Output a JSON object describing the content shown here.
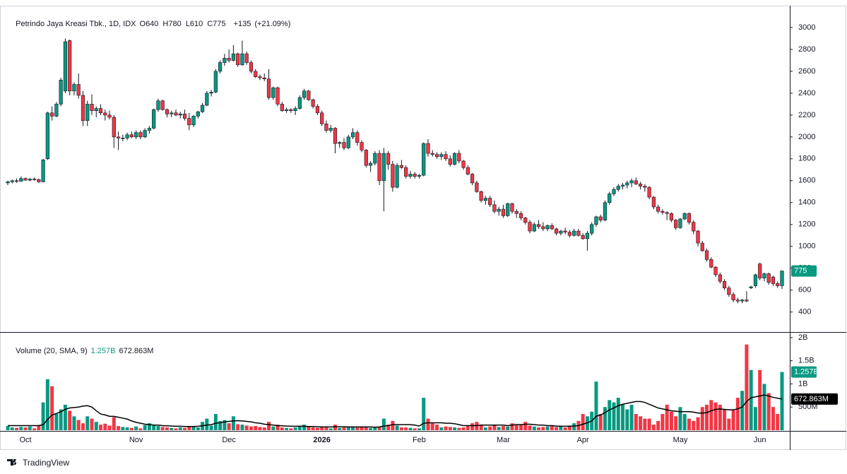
{
  "chart_data": {
    "type": "candlestick",
    "title": "Petrindo Jaya Kreasi Tbk., 1D, IDX",
    "quote_fields": [
      {
        "name": "O",
        "value": 640
      },
      {
        "name": "H",
        "value": 780
      },
      {
        "name": "L",
        "value": 610
      },
      {
        "name": "C",
        "value": 775
      }
    ],
    "change": {
      "value": 135,
      "label": "+135"
    },
    "change_pct": {
      "value": 21.09,
      "label": "(+21.09%)"
    },
    "up_color": "#089981",
    "down_color": "#f23645",
    "sma_color": "#000000",
    "categories": [
      null,
      null,
      null,
      null,
      "Oct",
      null,
      null,
      null,
      null,
      null,
      null,
      null,
      null,
      null,
      null,
      null,
      null,
      null,
      null,
      null,
      null,
      null,
      null,
      null,
      null,
      null,
      null,
      null,
      null,
      "Nov",
      null,
      null,
      null,
      null,
      null,
      null,
      null,
      null,
      null,
      null,
      null,
      null,
      null,
      null,
      null,
      null,
      null,
      null,
      null,
      null,
      "Dec",
      null,
      null,
      null,
      null,
      null,
      null,
      null,
      null,
      null,
      null,
      null,
      null,
      null,
      null,
      null,
      null,
      null,
      null,
      null,
      null,
      "2026",
      null,
      null,
      null,
      null,
      null,
      null,
      null,
      null,
      null,
      null,
      null,
      null,
      null,
      null,
      null,
      null,
      null,
      null,
      null,
      null,
      null,
      "Feb",
      null,
      null,
      null,
      null,
      null,
      null,
      null,
      null,
      null,
      null,
      null,
      null,
      null,
      null,
      null,
      null,
      null,
      null,
      "Mar",
      null,
      null,
      null,
      null,
      null,
      null,
      null,
      null,
      null,
      null,
      null,
      null,
      null,
      null,
      null,
      null,
      null,
      "Apr",
      null,
      null,
      null,
      null,
      null,
      null,
      null,
      null,
      null,
      null,
      null,
      null,
      null,
      null,
      null,
      null,
      null,
      null,
      null,
      null,
      null,
      "May",
      null,
      null,
      null,
      null,
      null,
      null,
      null,
      null,
      null,
      null,
      null,
      null,
      null,
      null,
      null,
      null,
      null,
      "Jun",
      null,
      null,
      null,
      null,
      null
    ],
    "candles": [
      [
        1580,
        1600,
        1560,
        1590
      ],
      [
        1590,
        1610,
        1575,
        1600
      ],
      [
        1600,
        1620,
        1580,
        1595
      ],
      [
        1595,
        1640,
        1590,
        1620
      ],
      [
        1620,
        1630,
        1600,
        1605
      ],
      [
        1605,
        1625,
        1595,
        1615
      ],
      [
        1615,
        1630,
        1600,
        1610
      ],
      [
        1610,
        1620,
        1580,
        1590
      ],
      [
        1590,
        1800,
        1585,
        1790
      ],
      [
        1800,
        2230,
        1790,
        2220
      ],
      [
        2220,
        2280,
        2150,
        2190
      ],
      [
        2190,
        2320,
        2180,
        2300
      ],
      [
        2300,
        2540,
        2280,
        2520
      ],
      [
        2420,
        2900,
        2400,
        2870
      ],
      [
        2880,
        2890,
        2380,
        2420
      ],
      [
        2420,
        2500,
        2380,
        2480
      ],
      [
        2480,
        2580,
        2350,
        2380
      ],
      [
        2380,
        2420,
        2100,
        2150
      ],
      [
        2150,
        2330,
        2100,
        2300
      ],
      [
        2300,
        2390,
        2200,
        2240
      ],
      [
        2240,
        2280,
        2180,
        2260
      ],
      [
        2260,
        2300,
        2200,
        2220
      ],
      [
        2220,
        2250,
        2150,
        2200
      ],
      [
        2200,
        2240,
        2160,
        2180
      ],
      [
        2180,
        2200,
        1900,
        2000
      ],
      [
        2000,
        2050,
        1880,
        1990
      ],
      [
        1990,
        2020,
        1960,
        1990
      ],
      [
        1990,
        2040,
        1970,
        2020
      ],
      [
        2020,
        2050,
        1990,
        2000
      ],
      [
        2000,
        2060,
        1980,
        2040
      ],
      [
        2040,
        2060,
        1980,
        2000
      ],
      [
        2000,
        2080,
        1990,
        2060
      ],
      [
        2060,
        2100,
        2030,
        2080
      ],
      [
        2080,
        2260,
        2070,
        2250
      ],
      [
        2250,
        2350,
        2230,
        2330
      ],
      [
        2330,
        2340,
        2240,
        2250
      ],
      [
        2250,
        2260,
        2180,
        2210
      ],
      [
        2210,
        2240,
        2180,
        2220
      ],
      [
        2220,
        2250,
        2190,
        2200
      ],
      [
        2200,
        2230,
        2170,
        2210
      ],
      [
        2210,
        2250,
        2150,
        2170
      ],
      [
        2170,
        2220,
        2060,
        2110
      ],
      [
        2110,
        2200,
        2090,
        2190
      ],
      [
        2190,
        2240,
        2170,
        2230
      ],
      [
        2230,
        2310,
        2220,
        2290
      ],
      [
        2290,
        2420,
        2280,
        2400
      ],
      [
        2400,
        2430,
        2370,
        2410
      ],
      [
        2410,
        2620,
        2400,
        2600
      ],
      [
        2600,
        2700,
        2580,
        2680
      ],
      [
        2680,
        2760,
        2650,
        2720
      ],
      [
        2720,
        2800,
        2680,
        2700
      ],
      [
        2700,
        2840,
        2690,
        2760
      ],
      [
        2760,
        2770,
        2640,
        2660
      ],
      [
        2660,
        2880,
        2650,
        2760
      ],
      [
        2760,
        2780,
        2660,
        2680
      ],
      [
        2680,
        2700,
        2580,
        2600
      ],
      [
        2600,
        2620,
        2540,
        2550
      ],
      [
        2550,
        2570,
        2520,
        2540
      ],
      [
        2540,
        2580,
        2510,
        2530
      ],
      [
        2530,
        2620,
        2340,
        2360
      ],
      [
        2360,
        2460,
        2340,
        2450
      ],
      [
        2450,
        2460,
        2280,
        2300
      ],
      [
        2300,
        2320,
        2230,
        2240
      ],
      [
        2240,
        2270,
        2220,
        2250
      ],
      [
        2250,
        2260,
        2220,
        2240
      ],
      [
        2240,
        2280,
        2200,
        2260
      ],
      [
        2260,
        2380,
        2250,
        2360
      ],
      [
        2360,
        2440,
        2340,
        2420
      ],
      [
        2420,
        2430,
        2330,
        2340
      ],
      [
        2340,
        2350,
        2260,
        2280
      ],
      [
        2280,
        2300,
        2200,
        2220
      ],
      [
        2220,
        2240,
        2100,
        2120
      ],
      [
        2120,
        2150,
        2040,
        2060
      ],
      [
        2060,
        2110,
        2040,
        2080
      ],
      [
        2080,
        2090,
        1850,
        1940
      ],
      [
        1940,
        1960,
        1900,
        1950
      ],
      [
        1950,
        1990,
        1880,
        1900
      ],
      [
        1900,
        2020,
        1890,
        2000
      ],
      [
        2000,
        2080,
        1980,
        2040
      ],
      [
        2040,
        2060,
        1920,
        1950
      ],
      [
        1950,
        1970,
        1860,
        1880
      ],
      [
        1880,
        1890,
        1720,
        1740
      ],
      [
        1740,
        1780,
        1680,
        1760
      ],
      [
        1760,
        1870,
        1740,
        1850
      ],
      [
        1850,
        1880,
        1560,
        1600
      ],
      [
        1600,
        1900,
        1320,
        1850
      ],
      [
        1850,
        1870,
        1700,
        1750
      ],
      [
        1750,
        1780,
        1500,
        1540
      ],
      [
        1540,
        1760,
        1530,
        1740
      ],
      [
        1740,
        1790,
        1710,
        1720
      ],
      [
        1720,
        1740,
        1620,
        1640
      ],
      [
        1640,
        1690,
        1620,
        1660
      ],
      [
        1660,
        1680,
        1620,
        1640
      ],
      [
        1640,
        1660,
        1620,
        1650
      ],
      [
        1650,
        1950,
        1640,
        1940
      ],
      [
        1940,
        1980,
        1820,
        1850
      ],
      [
        1850,
        1880,
        1820,
        1840
      ],
      [
        1840,
        1860,
        1800,
        1820
      ],
      [
        1820,
        1860,
        1790,
        1840
      ],
      [
        1840,
        1870,
        1780,
        1800
      ],
      [
        1800,
        1830,
        1730,
        1750
      ],
      [
        1750,
        1860,
        1740,
        1850
      ],
      [
        1850,
        1880,
        1760,
        1780
      ],
      [
        1780,
        1790,
        1700,
        1720
      ],
      [
        1720,
        1740,
        1650,
        1660
      ],
      [
        1660,
        1670,
        1560,
        1580
      ],
      [
        1580,
        1600,
        1490,
        1500
      ],
      [
        1500,
        1510,
        1400,
        1420
      ],
      [
        1420,
        1460,
        1380,
        1440
      ],
      [
        1440,
        1460,
        1360,
        1380
      ],
      [
        1380,
        1420,
        1300,
        1320
      ],
      [
        1320,
        1360,
        1280,
        1340
      ],
      [
        1340,
        1380,
        1260,
        1280
      ],
      [
        1280,
        1400,
        1270,
        1390
      ],
      [
        1390,
        1400,
        1300,
        1320
      ],
      [
        1320,
        1340,
        1260,
        1300
      ],
      [
        1300,
        1320,
        1240,
        1260
      ],
      [
        1260,
        1270,
        1200,
        1220
      ],
      [
        1220,
        1240,
        1120,
        1140
      ],
      [
        1140,
        1220,
        1130,
        1200
      ],
      [
        1200,
        1240,
        1160,
        1180
      ],
      [
        1180,
        1220,
        1140,
        1160
      ],
      [
        1160,
        1200,
        1140,
        1190
      ],
      [
        1190,
        1210,
        1150,
        1160
      ],
      [
        1160,
        1170,
        1100,
        1120
      ],
      [
        1120,
        1150,
        1100,
        1140
      ],
      [
        1140,
        1170,
        1110,
        1130
      ],
      [
        1130,
        1150,
        1080,
        1100
      ],
      [
        1100,
        1160,
        1090,
        1140
      ],
      [
        1140,
        1160,
        1090,
        1100
      ],
      [
        1100,
        1120,
        1060,
        1070
      ],
      [
        1070,
        1140,
        960,
        1120
      ],
      [
        1120,
        1220,
        1100,
        1200
      ],
      [
        1200,
        1280,
        1180,
        1270
      ],
      [
        1270,
        1290,
        1220,
        1240
      ],
      [
        1240,
        1420,
        1230,
        1400
      ],
      [
        1400,
        1500,
        1380,
        1480
      ],
      [
        1480,
        1540,
        1460,
        1520
      ],
      [
        1520,
        1570,
        1500,
        1550
      ],
      [
        1550,
        1580,
        1520,
        1560
      ],
      [
        1560,
        1600,
        1530,
        1580
      ],
      [
        1580,
        1620,
        1540,
        1600
      ],
      [
        1600,
        1630,
        1560,
        1570
      ],
      [
        1570,
        1590,
        1520,
        1550
      ],
      [
        1550,
        1570,
        1500,
        1540
      ],
      [
        1540,
        1550,
        1430,
        1450
      ],
      [
        1450,
        1460,
        1340,
        1360
      ],
      [
        1360,
        1380,
        1300,
        1320
      ],
      [
        1320,
        1340,
        1290,
        1310
      ],
      [
        1310,
        1320,
        1240,
        1300
      ],
      [
        1300,
        1310,
        1220,
        1240
      ],
      [
        1240,
        1250,
        1150,
        1170
      ],
      [
        1170,
        1260,
        1160,
        1250
      ],
      [
        1250,
        1310,
        1240,
        1300
      ],
      [
        1300,
        1310,
        1200,
        1220
      ],
      [
        1220,
        1240,
        1110,
        1140
      ],
      [
        1140,
        1150,
        1000,
        1030
      ],
      [
        1030,
        1050,
        950,
        960
      ],
      [
        960,
        980,
        860,
        880
      ],
      [
        880,
        900,
        800,
        810
      ],
      [
        810,
        820,
        720,
        740
      ],
      [
        740,
        760,
        660,
        680
      ],
      [
        680,
        700,
        600,
        620
      ],
      [
        620,
        640,
        540,
        560
      ],
      [
        560,
        580,
        490,
        510
      ],
      [
        510,
        530,
        480,
        500
      ],
      [
        500,
        520,
        480,
        510
      ],
      [
        510,
        590,
        490,
        500
      ],
      [
        620,
        640,
        610,
        630
      ],
      [
        640,
        750,
        620,
        740
      ],
      [
        840,
        850,
        690,
        710
      ],
      [
        710,
        760,
        680,
        750
      ],
      [
        750,
        760,
        650,
        670
      ],
      [
        720,
        730,
        640,
        660
      ],
      [
        660,
        680,
        620,
        640
      ],
      [
        640,
        780,
        610,
        775
      ]
    ],
    "ylim": [
      230,
      3200
    ],
    "yticks": [
      400,
      600,
      800,
      1000,
      1200,
      1400,
      1600,
      1800,
      2000,
      2200,
      2400,
      2600,
      2800,
      3000
    ],
    "volume_title": "Volume (20, SMA, 9)",
    "volume_legend": [
      {
        "value": 1257,
        "label": "1.257B"
      },
      {
        "value": 672.863,
        "label": "672.863M"
      }
    ],
    "volumes": [
      90,
      60,
      50,
      70,
      60,
      80,
      40,
      110,
      600,
      1100,
      950,
      350,
      450,
      550,
      420,
      300,
      220,
      150,
      300,
      250,
      180,
      120,
      140,
      100,
      280,
      90,
      70,
      60,
      50,
      80,
      40,
      110,
      150,
      100,
      90,
      70,
      60,
      50,
      40,
      60,
      50,
      70,
      80,
      60,
      180,
      250,
      100,
      350,
      200,
      220,
      150,
      300,
      130,
      120,
      100,
      80,
      90,
      70,
      60,
      180,
      80,
      120,
      60,
      50,
      40,
      60,
      80,
      120,
      70,
      60,
      50,
      80,
      60,
      40,
      120,
      50,
      60,
      70,
      80,
      60,
      70,
      60,
      50,
      60,
      70,
      250,
      120,
      200,
      100,
      60,
      60,
      50,
      40,
      40,
      700,
      250,
      150,
      120,
      60,
      80,
      70,
      60,
      50,
      60,
      100,
      150,
      180,
      120,
      60,
      80,
      100,
      70,
      90,
      80,
      150,
      120,
      130,
      180,
      100,
      80,
      60,
      70,
      80,
      90,
      70,
      80,
      60,
      100,
      150,
      200,
      350,
      300,
      400,
      1050,
      350,
      500,
      650,
      600,
      700,
      550,
      450,
      550,
      350,
      300,
      250,
      250,
      120,
      200,
      350,
      550,
      400,
      300,
      500,
      350,
      250,
      200,
      280,
      500,
      550,
      650,
      600,
      550,
      450,
      250,
      450,
      700,
      850,
      1850,
      1300,
      500,
      1300,
      1000,
      800,
      500,
      350,
      1257
    ],
    "sma": [
      100,
      100,
      100,
      100,
      100,
      100,
      100,
      100,
      120,
      230,
      330,
      360,
      400,
      450,
      480,
      490,
      500,
      520,
      530,
      500,
      420,
      350,
      330,
      300,
      300,
      280,
      260,
      240,
      200,
      170,
      150,
      130,
      120,
      110,
      110,
      100,
      95,
      90,
      85,
      85,
      80,
      80,
      80,
      85,
      95,
      110,
      120,
      150,
      160,
      180,
      190,
      200,
      205,
      200,
      190,
      180,
      160,
      150,
      130,
      120,
      110,
      100,
      95,
      90,
      85,
      85,
      85,
      85,
      80,
      80,
      75,
      70,
      70,
      70,
      75,
      75,
      75,
      70,
      70,
      70,
      70,
      70,
      70,
      65,
      70,
      90,
      100,
      120,
      120,
      120,
      120,
      120,
      110,
      90,
      150,
      160,
      160,
      160,
      160,
      150,
      150,
      140,
      120,
      100,
      100,
      100,
      100,
      110,
      110,
      110,
      110,
      110,
      110,
      100,
      110,
      120,
      120,
      130,
      130,
      120,
      110,
      110,
      100,
      100,
      90,
      85,
      85,
      85,
      90,
      100,
      130,
      160,
      200,
      300,
      330,
      380,
      440,
      480,
      530,
      560,
      580,
      600,
      620,
      620,
      600,
      560,
      520,
      480,
      460,
      440,
      420,
      410,
      400,
      400,
      400,
      390,
      370,
      370,
      380,
      420,
      450,
      460,
      450,
      440,
      440,
      460,
      500,
      620,
      700,
      720,
      740,
      760,
      740,
      710,
      690,
      672.863
    ],
    "vylim": [
      0,
      2120
    ],
    "vyticks": [
      {
        "value": 500,
        "label": "500M"
      },
      {
        "value": 1000,
        "label": "1B"
      },
      {
        "value": 1500,
        "label": "1.5B"
      },
      {
        "value": 2000,
        "label": "2B"
      }
    ],
    "source": "TradingView"
  }
}
